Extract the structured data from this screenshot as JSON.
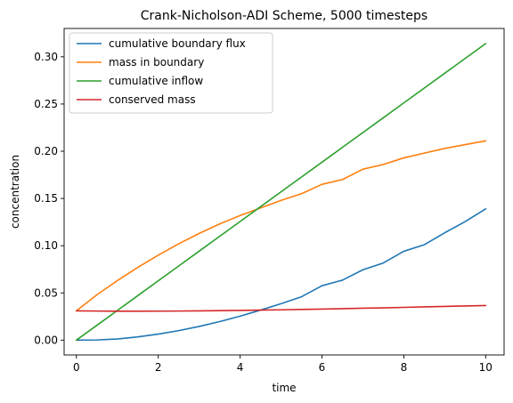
{
  "chart_data": {
    "type": "line",
    "title": "Crank-Nicholson-ADI Scheme, 5000 timesteps",
    "xlabel": "time",
    "ylabel": "concentration",
    "xlim": [
      -0.3,
      10.45
    ],
    "ylim": [
      -0.0157,
      0.33
    ],
    "xticks": [
      0,
      2,
      4,
      6,
      8,
      10
    ],
    "xtick_labels": [
      "0",
      "2",
      "4",
      "6",
      "8",
      "10"
    ],
    "yticks": [
      0.0,
      0.05,
      0.1,
      0.15,
      0.2,
      0.25,
      0.3
    ],
    "ytick_labels": [
      "0.00",
      "0.05",
      "0.10",
      "0.15",
      "0.20",
      "0.25",
      "0.30"
    ],
    "grid": false,
    "legend_position": "top-left",
    "x": [
      0,
      0.5,
      1,
      1.5,
      2,
      2.5,
      3,
      3.5,
      4,
      4.5,
      5,
      5.5,
      6,
      6.5,
      7,
      7.5,
      8,
      8.5,
      9,
      9.5,
      10
    ],
    "series": [
      {
        "name": "cumulative boundary flux",
        "color": "#1f77b4",
        "values": [
          0.0,
          0.0002,
          0.0012,
          0.0034,
          0.0064,
          0.0101,
          0.0145,
          0.0196,
          0.0254,
          0.0318,
          0.0386,
          0.0459,
          0.0576,
          0.0635,
          0.0745,
          0.0817,
          0.0941,
          0.101,
          0.1137,
          0.1255,
          0.139
        ]
      },
      {
        "name": "mass in boundary",
        "color": "#ff7f0e",
        "values": [
          0.031,
          0.048,
          0.063,
          0.077,
          0.09,
          0.102,
          0.113,
          0.123,
          0.132,
          0.14,
          0.148,
          0.155,
          0.165,
          0.17,
          0.181,
          0.186,
          0.193,
          0.198,
          0.203,
          0.207,
          0.211
        ]
      },
      {
        "name": "cumulative inflow",
        "color": "#2ca02c",
        "values": [
          0.0,
          0.0157,
          0.0314,
          0.0471,
          0.0628,
          0.0785,
          0.0942,
          0.1099,
          0.1256,
          0.1413,
          0.157,
          0.1727,
          0.1884,
          0.2041,
          0.2198,
          0.2355,
          0.2512,
          0.2669,
          0.2826,
          0.2983,
          0.314
        ]
      },
      {
        "name": "conserved mass",
        "color": "#d62728",
        "values": [
          0.031,
          0.0308,
          0.0306,
          0.0306,
          0.0307,
          0.0308,
          0.031,
          0.0312,
          0.0315,
          0.0318,
          0.0321,
          0.0325,
          0.0329,
          0.0333,
          0.0338,
          0.0342,
          0.0347,
          0.0352,
          0.0357,
          0.0362,
          0.0366
        ]
      }
    ]
  }
}
